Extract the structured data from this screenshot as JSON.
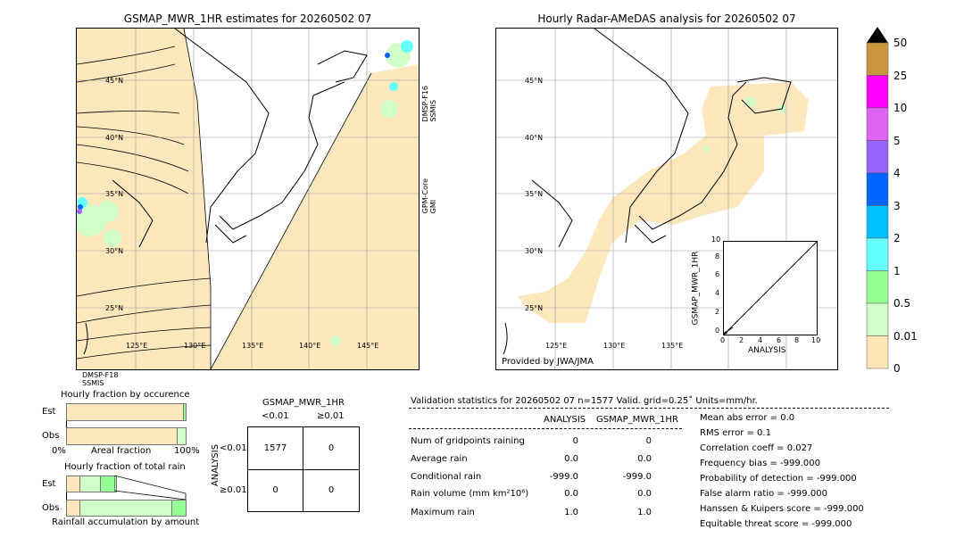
{
  "left_map": {
    "title": "GSMAP_MWR_1HR estimates for 20260502 07",
    "lat_labels": [
      "45°N",
      "40°N",
      "35°N",
      "30°N",
      "25°N"
    ],
    "lon_labels": [
      "125°E",
      "130°E",
      "135°E",
      "140°E",
      "145°E"
    ],
    "sensor_labels": [
      "DMSP-F16\nSSMIS",
      "GPM-Core\nGMI",
      "DMSP-F18\nSSMIS"
    ]
  },
  "right_map": {
    "title": "Hourly Radar-AMeDAS analysis for 20260502 07",
    "lat_labels": [
      "45°N",
      "40°N",
      "35°N",
      "30°N",
      "25°N"
    ],
    "lon_labels": [
      "125°E",
      "130°E",
      "135°E"
    ],
    "credit": "Provided by JWA/JMA"
  },
  "colorbar": {
    "ticks": [
      "50",
      "25",
      "10",
      "5",
      "4",
      "3",
      "2",
      "1",
      "0.5",
      "0.01",
      "0"
    ],
    "colors": [
      "#c8963c",
      "#ff00ff",
      "#dc64f0",
      "#9664ff",
      "#0064ff",
      "#00bfff",
      "#64ffff",
      "#96ff96",
      "#d2ffc8",
      "#ffe6b4"
    ],
    "over_color": "#000000"
  },
  "scatter": {
    "ylabel": "GSMAP_MWR_1HR",
    "xlabel": "ANALYSIS",
    "ticks": [
      "0",
      "2",
      "4",
      "6",
      "8",
      "10"
    ]
  },
  "fraction": {
    "occurrence_title": "Hourly fraction by occurence",
    "total_title": "Hourly fraction of total rain",
    "est_label": "Est",
    "obs_label": "Obs",
    "axis_left": "0%",
    "axis_mid": "Areal fraction",
    "axis_right": "100%",
    "accum_label": "Rainfall accumulation by amount"
  },
  "contingency": {
    "title": "GSMAP_MWR_1HR",
    "col_headers": [
      "<0.01",
      "≥0.01"
    ],
    "row_axis": "ANALYSIS",
    "row_headers": [
      "<0.01",
      "≥0.01"
    ],
    "cells": [
      [
        "1577",
        "0"
      ],
      [
        "0",
        "0"
      ]
    ]
  },
  "validation": {
    "header": "Validation statistics for 20260502 07  n=1577 Valid. grid=0.25˚ Units=mm/hr.",
    "col_analysis": "ANALYSIS",
    "col_gsmap": "GSMAP_MWR_1HR",
    "rows": [
      {
        "label": "Num of gridpoints raining",
        "analysis": "0",
        "gsmap": "0"
      },
      {
        "label": "Average rain",
        "analysis": "0.0",
        "gsmap": "0.0"
      },
      {
        "label": "Conditional rain",
        "analysis": "-999.0",
        "gsmap": "-999.0"
      },
      {
        "label": "Rain volume (mm km²10⁶)",
        "analysis": "0.0",
        "gsmap": "0.0"
      },
      {
        "label": "Maximum rain",
        "analysis": "1.0",
        "gsmap": "1.0"
      }
    ],
    "scores": [
      "Mean abs error =    0.0",
      "RMS error =    0.1",
      "Correlation coeff =  0.027",
      "Frequency bias = -999.000",
      "Probability of detection = -999.000",
      "False alarm ratio = -999.000",
      "Hanssen & Kuipers score = -999.000",
      "Equitable threat score = -999.000"
    ]
  }
}
